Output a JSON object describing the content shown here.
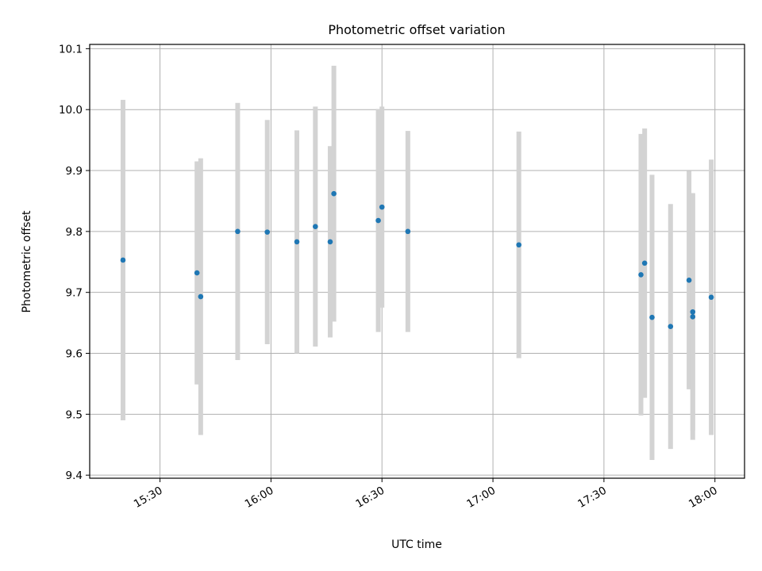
{
  "chart_data": {
    "type": "scatter",
    "title": "Photometric offset variation",
    "xlabel": "UTC time",
    "ylabel": "Photometric offset",
    "x_ticks": [
      "15:30",
      "16:00",
      "16:30",
      "17:00",
      "17:30",
      "18:00"
    ],
    "y_ticks": [
      "9.4",
      "9.5",
      "9.6",
      "9.7",
      "9.8",
      "9.9",
      "10.0",
      "10.1"
    ],
    "xlim": [
      "15:11",
      "18:08"
    ],
    "ylim": [
      9.395,
      10.107
    ],
    "grid": true,
    "colors": {
      "point": "#1f77b4",
      "errorbar": "#d3d3d3",
      "grid": "#b0b0b0"
    },
    "points": [
      {
        "x": "15:20",
        "y": 9.753,
        "yerr": 0.263
      },
      {
        "x": "15:40",
        "y": 9.732,
        "yerr": 0.183
      },
      {
        "x": "15:41",
        "y": 9.693,
        "yerr": 0.227
      },
      {
        "x": "15:51",
        "y": 9.8,
        "yerr": 0.211
      },
      {
        "x": "15:59",
        "y": 9.799,
        "yerr": 0.184
      },
      {
        "x": "16:07",
        "y": 9.783,
        "yerr": 0.183
      },
      {
        "x": "16:12",
        "y": 9.808,
        "yerr": 0.197
      },
      {
        "x": "16:16",
        "y": 9.783,
        "yerr": 0.157
      },
      {
        "x": "16:17",
        "y": 9.862,
        "yerr": 0.21
      },
      {
        "x": "16:29",
        "y": 9.818,
        "yerr": 0.183
      },
      {
        "x": "16:30",
        "y": 9.84,
        "yerr": 0.165
      },
      {
        "x": "16:37",
        "y": 9.8,
        "yerr": 0.165
      },
      {
        "x": "17:07",
        "y": 9.778,
        "yerr": 0.186
      },
      {
        "x": "17:40",
        "y": 9.729,
        "yerr": 0.231
      },
      {
        "x": "17:41",
        "y": 9.748,
        "yerr": 0.221
      },
      {
        "x": "17:43",
        "y": 9.659,
        "yerr": 0.234
      },
      {
        "x": "17:48",
        "y": 9.644,
        "yerr": 0.201
      },
      {
        "x": "17:53",
        "y": 9.72,
        "yerr": 0.179
      },
      {
        "x": "17:54",
        "y": 9.66,
        "yerr": 0.202
      },
      {
        "x": "17:54",
        "y": 9.668,
        "yerr": 0.195
      },
      {
        "x": "17:59",
        "y": 9.692,
        "yerr": 0.226
      }
    ]
  }
}
